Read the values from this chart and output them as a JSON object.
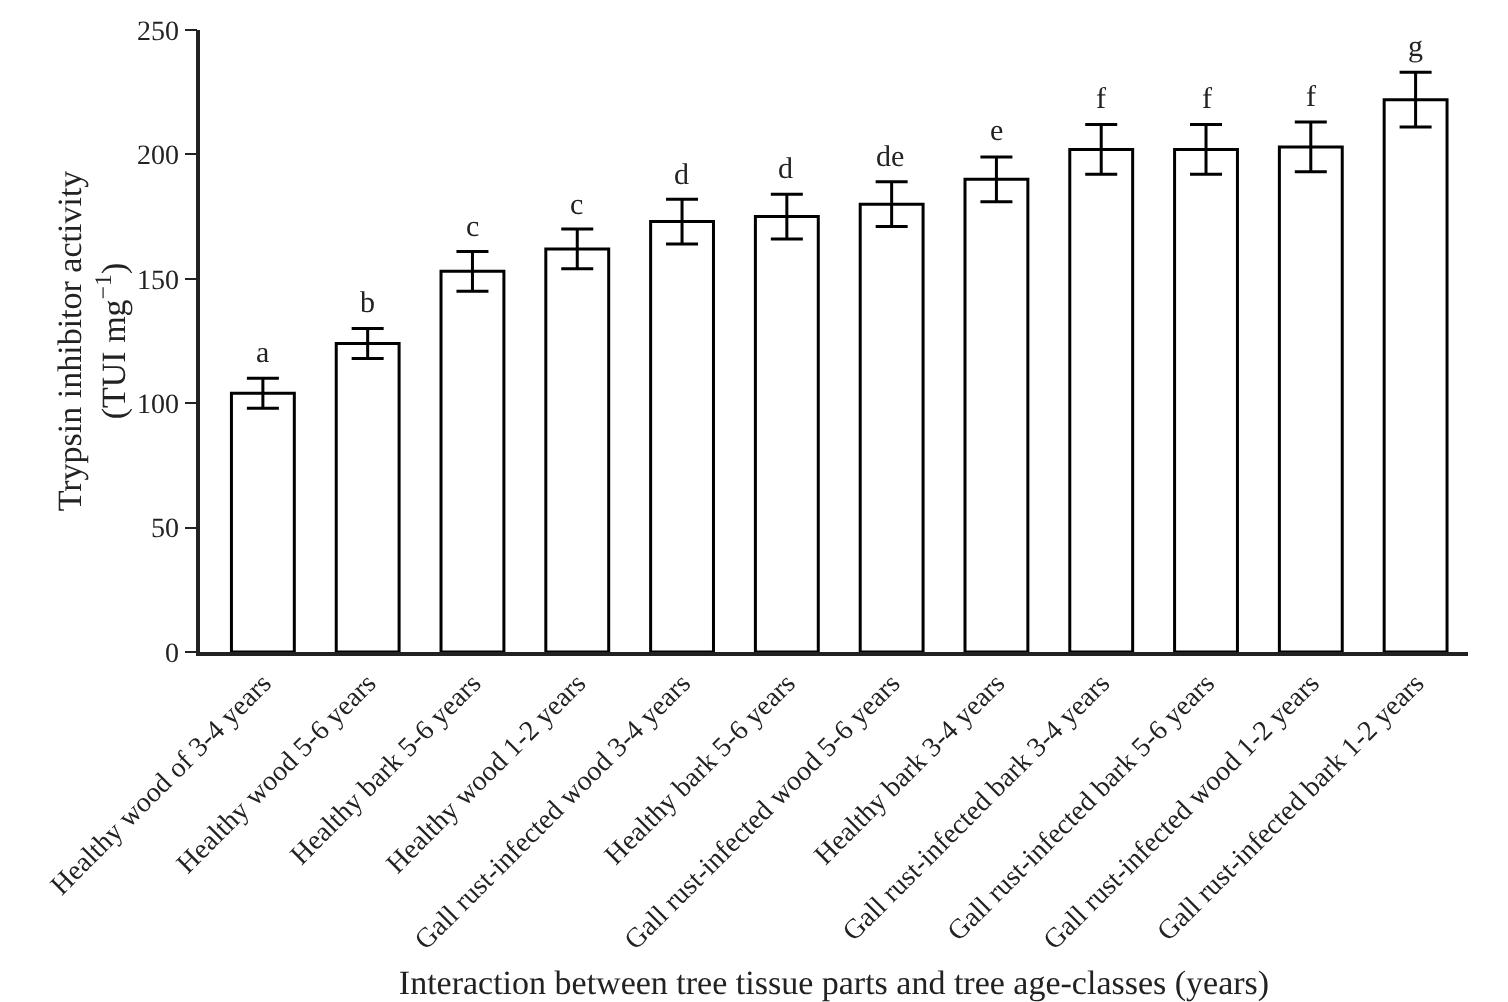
{
  "chart_data": {
    "type": "bar",
    "xlabel": "Interaction between tree tissue parts and tree age-classes (years)",
    "ylabel": "Trypsin inhibitor activity\n(TUI mg$^{−1}$)",
    "categories": [
      "Healthy wood of 3-4 years",
      "Healthy wood 5-6 years",
      "Healthy bark 5-6 years",
      "Healthy wood 1-2 years",
      "Gall rust-infected wood 3-4 years",
      "Healthy bark 5-6 years",
      "Gall rust-infected wood 5-6 years",
      "Healthy bark 3-4 years",
      "Gall rust-infected bark 3-4 years",
      "Gall rust-infected bark 5-6 years",
      "Gall rust-infected wood 1-2 years",
      "Gall rust-infected bark 1-2 years"
    ],
    "values": [
      104,
      124,
      153,
      162,
      173,
      175,
      180,
      190,
      202,
      202,
      203,
      222
    ],
    "errors": [
      6,
      6,
      8,
      8,
      9,
      9,
      9,
      9,
      10,
      10,
      10,
      11
    ],
    "color": "#ffffff",
    "ylim": [
      0,
      250
    ],
    "yticks": [
      0,
      50,
      100,
      150,
      200,
      250
    ],
    "annotations": [
      {
        "text": "a",
        "x": "Healthy wood of 3-4 years",
        "y": 110
      },
      {
        "text": "b",
        "x": "Healthy wood 5-6 years",
        "y": 130
      },
      {
        "text": "c",
        "x": "Healthy bark 5-6 years",
        "y": 161
      },
      {
        "text": "c",
        "x": "Healthy wood 1-2 years",
        "y": 170
      },
      {
        "text": "d",
        "x": "Gall rust-infected wood 3-4 years",
        "y": 182
      },
      "d",
      {
        "text": "de",
        "x": "Gall rust-infected wood 5-6 years",
        "y": 189
      },
      {
        "text": "e",
        "x": "Healthy bark 3-4 years",
        "y": 199
      },
      {
        "text": "f",
        "x": "Gall rust-infected bark 3-4 years",
        "y": 212
      },
      {
        "text": "f",
        "x": "Gall rust-infected bark 5-6 years",
        "y": 212
      },
      {
        "text": "f",
        "x": "Gall rust-infected wood 1-2 years",
        "y": 213
      },
      {
        "text": "g",
        "x": "Gall rust-infected bark 1-2 years",
        "y": 233
      }
    ]
  }
}
